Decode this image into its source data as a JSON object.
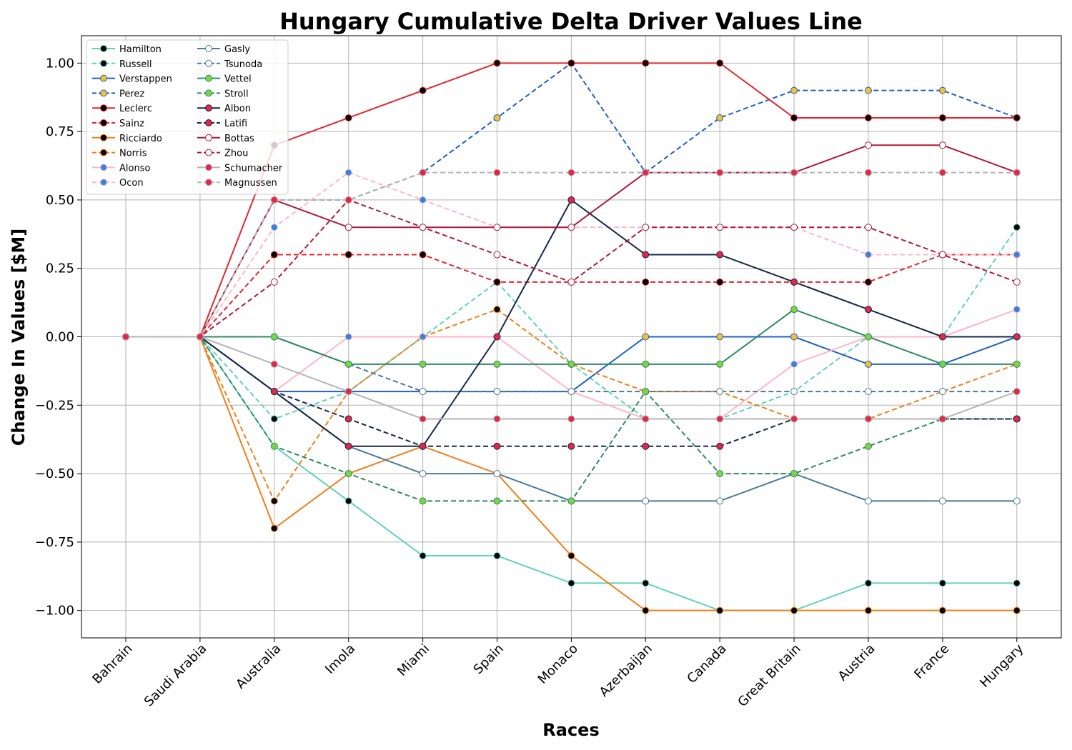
{
  "chart_data": {
    "type": "line",
    "title": "Hungary Cumulative Delta Driver Values Line",
    "xlabel": "Races",
    "ylabel": "Change In Values [$M]",
    "categories": [
      "Bahrain",
      "Saudi Arabia",
      "Australia",
      "Imola",
      "Miami",
      "Spain",
      "Monaco",
      "Azerbaijan",
      "Canada",
      "Great Britain",
      "Austria",
      "France",
      "Hungary"
    ],
    "ylim": [
      -1.1,
      1.1
    ],
    "yticks": [
      "1.00",
      "0.75",
      "0.50",
      "0.25",
      "0.00",
      "−0.25",
      "−0.50",
      "−0.75",
      "−1.00"
    ],
    "ytick_values": [
      1.0,
      0.75,
      0.5,
      0.25,
      0.0,
      -0.25,
      -0.5,
      -0.75,
      -1.0
    ],
    "grid": true,
    "legend_placement": "top-left",
    "series": [
      {
        "name": "Hamilton",
        "color": "#5fd3b9",
        "dash": false,
        "marker_fill": "#000000",
        "values": [
          0,
          0,
          -0.4,
          -0.6,
          -0.8,
          -0.8,
          -0.9,
          -0.9,
          -1.0,
          -1.0,
          -0.9,
          -0.9,
          -0.9
        ]
      },
      {
        "name": "Russell",
        "color": "#5fd3b9",
        "dash": true,
        "marker_fill": "#000000",
        "values": [
          0,
          0,
          -0.3,
          -0.2,
          0.0,
          0.2,
          -0.1,
          -0.3,
          -0.3,
          -0.2,
          0.0,
          0.0,
          0.4
        ]
      },
      {
        "name": "Verstappen",
        "color": "#2160c4",
        "dash": false,
        "marker_fill": "#f2c12e",
        "values": [
          0,
          0,
          -0.2,
          -0.2,
          -0.2,
          -0.2,
          -0.2,
          0.0,
          0.0,
          0.0,
          -0.1,
          -0.1,
          0.0
        ]
      },
      {
        "name": "Perez",
        "color": "#2160c4",
        "dash": true,
        "marker_fill": "#f2c12e",
        "values": [
          0,
          0,
          0.5,
          0.5,
          0.6,
          0.8,
          1.0,
          0.6,
          0.8,
          0.9,
          0.9,
          0.9,
          0.8
        ]
      },
      {
        "name": "Leclerc",
        "color": "#e3262e",
        "dash": false,
        "marker_fill": "#000000",
        "values": [
          0,
          0,
          0.7,
          0.8,
          0.9,
          1.0,
          1.0,
          1.0,
          1.0,
          0.8,
          0.8,
          0.8,
          0.8
        ]
      },
      {
        "name": "Sainz",
        "color": "#e3262e",
        "dash": true,
        "marker_fill": "#000000",
        "values": [
          0,
          0,
          0.3,
          0.3,
          0.3,
          0.2,
          0.2,
          0.2,
          0.2,
          0.2,
          0.2,
          0.3,
          0.3
        ]
      },
      {
        "name": "Ricciardo",
        "color": "#f07f1a",
        "dash": false,
        "marker_fill": "#000000",
        "values": [
          0,
          0,
          -0.7,
          -0.5,
          -0.4,
          -0.5,
          -0.8,
          -1.0,
          -1.0,
          -1.0,
          -1.0,
          -1.0,
          -1.0
        ]
      },
      {
        "name": "Norris",
        "color": "#f07f1a",
        "dash": true,
        "marker_fill": "#000000",
        "values": [
          0,
          0,
          -0.6,
          -0.2,
          0.0,
          0.1,
          -0.1,
          -0.2,
          -0.2,
          -0.3,
          -0.3,
          -0.2,
          -0.1
        ]
      },
      {
        "name": "Alonso",
        "color": "#ffb6c8",
        "dash": false,
        "marker_fill": "#2e86de",
        "values": [
          0,
          0,
          -0.2,
          0.0,
          0.0,
          0.0,
          -0.2,
          -0.3,
          -0.3,
          -0.1,
          0.0,
          0.0,
          0.1
        ]
      },
      {
        "name": "Ocon",
        "color": "#ffb6c8",
        "dash": true,
        "marker_fill": "#2e86de",
        "values": [
          0,
          0,
          0.4,
          0.6,
          0.5,
          0.4,
          0.4,
          0.4,
          0.4,
          0.4,
          0.3,
          0.3,
          0.3
        ]
      },
      {
        "name": "Gasly",
        "color": "#4a7a98",
        "dash": false,
        "marker_fill": "#ffffff",
        "values": [
          0,
          0,
          -0.2,
          -0.4,
          -0.5,
          -0.5,
          -0.6,
          -0.6,
          -0.6,
          -0.5,
          -0.6,
          -0.6,
          -0.6
        ]
      },
      {
        "name": "Tsunoda",
        "color": "#4a7a98",
        "dash": true,
        "marker_fill": "#ffffff",
        "values": [
          0,
          0,
          0.0,
          -0.1,
          -0.2,
          -0.2,
          -0.2,
          -0.2,
          -0.2,
          -0.2,
          -0.2,
          -0.2,
          -0.2
        ]
      },
      {
        "name": "Vettel",
        "color": "#2e8b63",
        "dash": false,
        "marker_fill": "#7ed348",
        "values": [
          0,
          0,
          0.0,
          -0.1,
          -0.1,
          -0.1,
          -0.1,
          -0.1,
          -0.1,
          0.1,
          0.0,
          -0.1,
          -0.1
        ]
      },
      {
        "name": "Stroll",
        "color": "#2e8b63",
        "dash": true,
        "marker_fill": "#7ed348",
        "values": [
          0,
          0,
          -0.4,
          -0.5,
          -0.6,
          -0.6,
          -0.6,
          -0.2,
          -0.5,
          -0.5,
          -0.4,
          -0.3,
          -0.3
        ]
      },
      {
        "name": "Albon",
        "color": "#16284a",
        "dash": false,
        "marker_fill": "#e3264a",
        "values": [
          0,
          0,
          -0.2,
          -0.4,
          -0.4,
          0.0,
          0.5,
          0.3,
          0.3,
          0.2,
          0.1,
          0.0,
          0.0
        ]
      },
      {
        "name": "Latifi",
        "color": "#16284a",
        "dash": true,
        "marker_fill": "#e3264a",
        "values": [
          0,
          0,
          -0.2,
          -0.3,
          -0.4,
          -0.4,
          -0.4,
          -0.4,
          -0.4,
          -0.3,
          -0.3,
          -0.3,
          -0.3
        ]
      },
      {
        "name": "Bottas",
        "color": "#b3193a",
        "dash": false,
        "marker_fill": "#ffffff",
        "values": [
          0,
          0,
          0.5,
          0.4,
          0.4,
          0.4,
          0.4,
          0.6,
          0.6,
          0.6,
          0.7,
          0.7,
          0.6
        ]
      },
      {
        "name": "Zhou",
        "color": "#b3193a",
        "dash": true,
        "marker_fill": "#ffffff",
        "values": [
          0,
          0,
          0.2,
          0.5,
          0.4,
          0.3,
          0.2,
          0.4,
          0.4,
          0.4,
          0.4,
          0.3,
          0.2
        ]
      },
      {
        "name": "Schumacher",
        "color": "#b5b5b5",
        "dash": false,
        "marker_fill": "#e3264a",
        "values": [
          0,
          0,
          -0.1,
          -0.2,
          -0.3,
          -0.3,
          -0.3,
          -0.3,
          -0.3,
          -0.3,
          -0.3,
          -0.3,
          -0.2
        ]
      },
      {
        "name": "Magnussen",
        "color": "#b5b5b5",
        "dash": true,
        "marker_fill": "#e3264a",
        "values": [
          0,
          0,
          0.5,
          0.5,
          0.6,
          0.6,
          0.6,
          0.6,
          0.6,
          0.6,
          0.6,
          0.6,
          0.6
        ]
      }
    ]
  }
}
